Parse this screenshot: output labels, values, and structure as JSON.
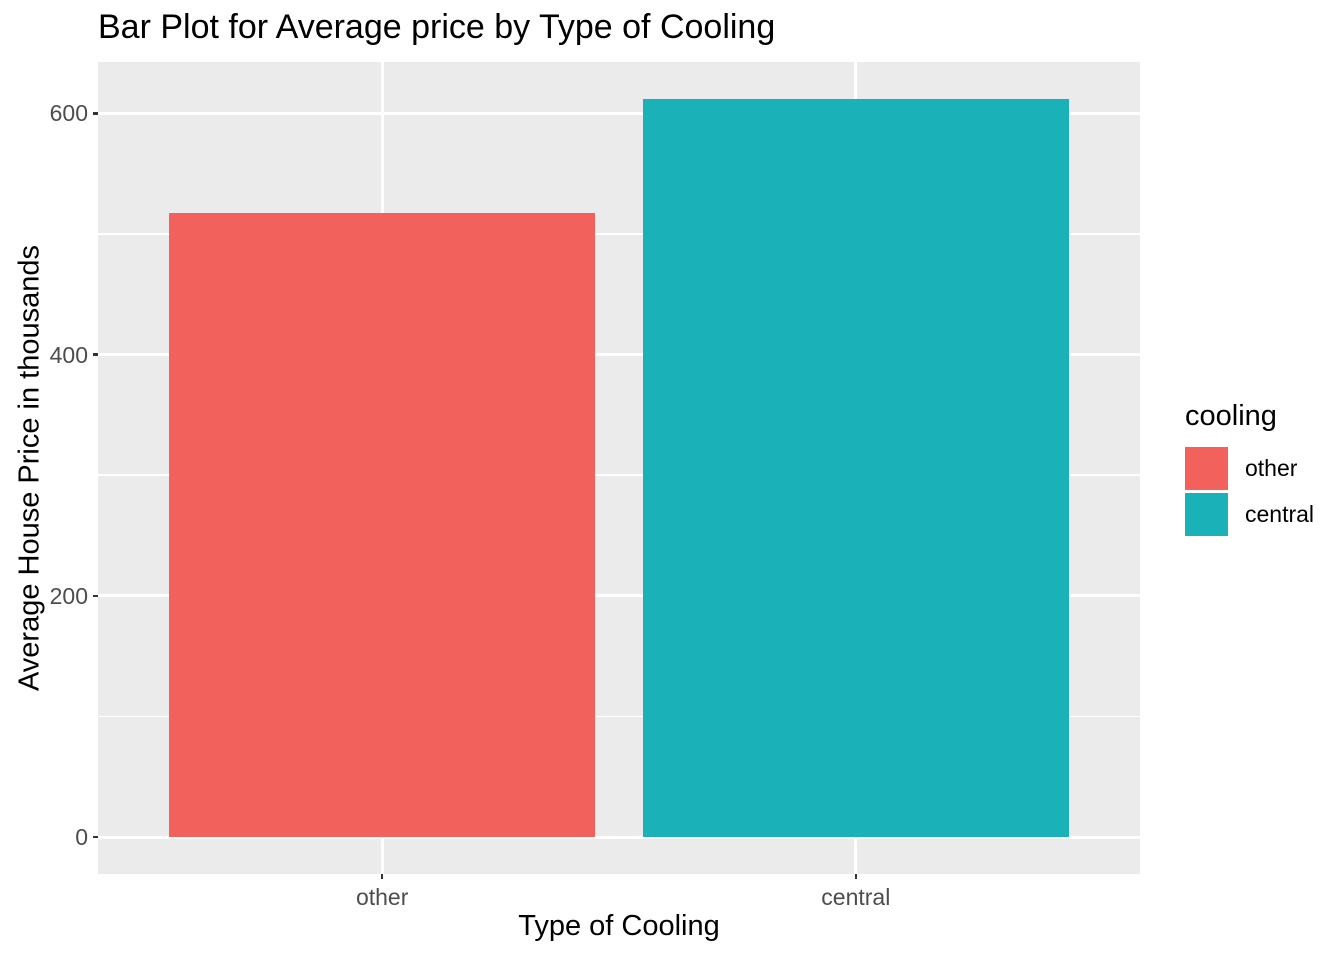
{
  "chart_data": {
    "type": "bar",
    "title": "Bar Plot for Average price by Type of Cooling",
    "xlabel": "Type of Cooling",
    "ylabel": "Average House Price in thousands",
    "categories": [
      "other",
      "central"
    ],
    "values": [
      517,
      612
    ],
    "yticks": [
      0,
      200,
      400,
      600
    ],
    "yticks_minor": [
      100,
      300,
      500
    ],
    "ylim_displayed": [
      -30.6,
      642.6
    ],
    "bar_width_fraction": 0.9,
    "grid": true,
    "legend": {
      "title": "cooling",
      "position": "right",
      "labels": [
        "other",
        "central"
      ]
    },
    "colors": {
      "series": [
        "#F2615C",
        "#1AB1B8"
      ],
      "panel_bg": "#EBEBEB",
      "gridline": "#FFFFFF",
      "tick_text": "#4D4D4D",
      "tick_mark": "#333333",
      "text": "#000000",
      "page_bg": "#FFFFFF"
    }
  }
}
